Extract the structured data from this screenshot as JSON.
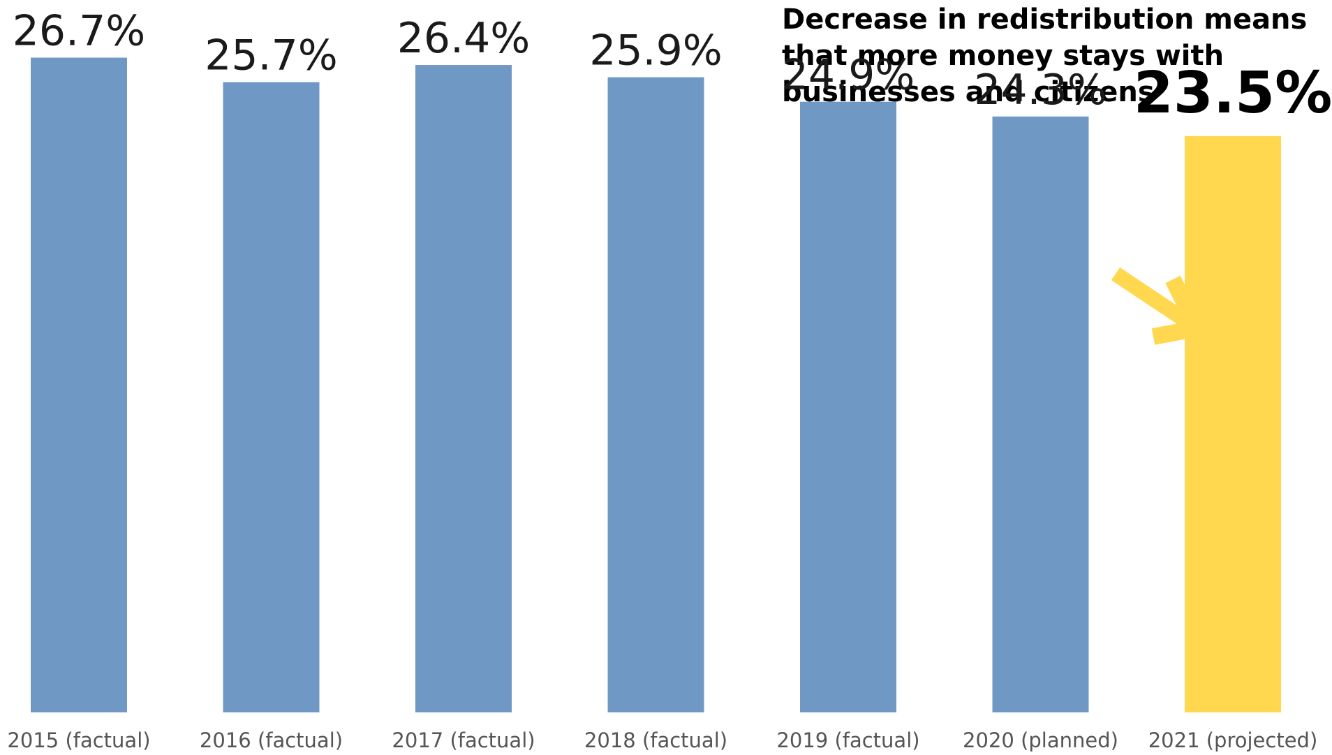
{
  "colors": {
    "bar_default": "#7098C5",
    "bar_highlight": "#FFD84F",
    "arrow": "#FFD84F",
    "text": "#1a1a1a",
    "category_text": "#555555"
  },
  "chart_data": {
    "type": "bar",
    "title": "Decrease in redistribution means that more money stays with businesses and citizens",
    "xlabel": "",
    "ylabel": "",
    "categories": [
      "2015 (factual)",
      "2016 (factual)",
      "2017 (factual)",
      "2018 (factual)",
      "2019 (factual)",
      "2020 (planned)",
      "2021 (projected)"
    ],
    "values": [
      26.7,
      25.7,
      26.4,
      25.9,
      24.9,
      24.3,
      23.5
    ],
    "data_labels": [
      "26.7%",
      "25.7%",
      "26.4%",
      "25.9%",
      "24.9%",
      "24.3%",
      "23.5%"
    ],
    "highlight_index": 6,
    "ylim": [
      0,
      27
    ],
    "grid": false,
    "legend": "none",
    "annotations": [
      {
        "type": "arrow",
        "icon": "arrow-down-right-icon",
        "target_index": 6
      }
    ]
  }
}
